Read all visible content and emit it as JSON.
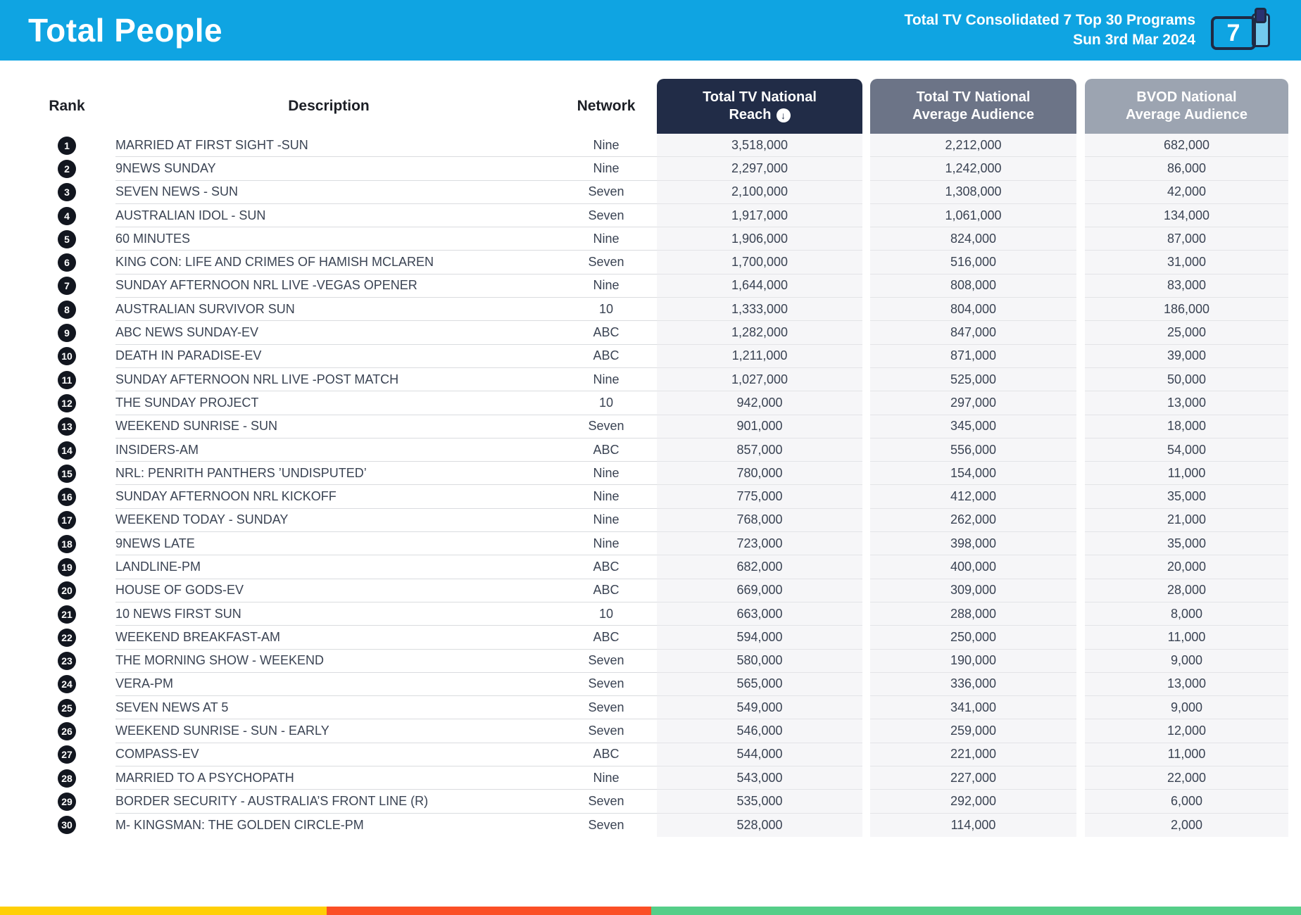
{
  "header": {
    "title": "Total People",
    "subtitle_line1": "Total TV Consolidated 7 Top 30 Programs",
    "subtitle_line2": "Sun 3rd Mar 2024",
    "icon_number": "7",
    "banner_color": "#0FA4E2"
  },
  "table": {
    "columns": {
      "rank": "Rank",
      "description": "Description",
      "network": "Network",
      "reach_line1": "Total TV National",
      "reach_line2": "Reach",
      "reach_sort_icon": "↓",
      "avg_line1": "Total TV National",
      "avg_line2": "Average Audience",
      "bvod_line1": "BVOD National",
      "bvod_line2": "Average Audience"
    },
    "header_colors": {
      "reach": "#212C47",
      "avg": "#6C7487",
      "bvod": "#9CA4B1"
    },
    "rows": [
      {
        "rank": "1",
        "description": "MARRIED AT FIRST SIGHT -SUN",
        "network": "Nine",
        "reach": "3,518,000",
        "avg": "2,212,000",
        "bvod": "682,000"
      },
      {
        "rank": "2",
        "description": "9NEWS SUNDAY",
        "network": "Nine",
        "reach": "2,297,000",
        "avg": "1,242,000",
        "bvod": "86,000"
      },
      {
        "rank": "3",
        "description": "SEVEN NEWS - SUN",
        "network": "Seven",
        "reach": "2,100,000",
        "avg": "1,308,000",
        "bvod": "42,000"
      },
      {
        "rank": "4",
        "description": "AUSTRALIAN IDOL - SUN",
        "network": "Seven",
        "reach": "1,917,000",
        "avg": "1,061,000",
        "bvod": "134,000"
      },
      {
        "rank": "5",
        "description": "60 MINUTES",
        "network": "Nine",
        "reach": "1,906,000",
        "avg": "824,000",
        "bvod": "87,000"
      },
      {
        "rank": "6",
        "description": "KING CON: LIFE AND CRIMES OF HAMISH MCLAREN",
        "network": "Seven",
        "reach": "1,700,000",
        "avg": "516,000",
        "bvod": "31,000"
      },
      {
        "rank": "7",
        "description": "SUNDAY AFTERNOON NRL LIVE -VEGAS OPENER",
        "network": "Nine",
        "reach": "1,644,000",
        "avg": "808,000",
        "bvod": "83,000"
      },
      {
        "rank": "8",
        "description": "AUSTRALIAN SURVIVOR SUN",
        "network": "10",
        "reach": "1,333,000",
        "avg": "804,000",
        "bvod": "186,000"
      },
      {
        "rank": "9",
        "description": "ABC NEWS SUNDAY-EV",
        "network": "ABC",
        "reach": "1,282,000",
        "avg": "847,000",
        "bvod": "25,000"
      },
      {
        "rank": "10",
        "description": "DEATH IN PARADISE-EV",
        "network": "ABC",
        "reach": "1,211,000",
        "avg": "871,000",
        "bvod": "39,000"
      },
      {
        "rank": "11",
        "description": "SUNDAY AFTERNOON NRL LIVE -POST MATCH",
        "network": "Nine",
        "reach": "1,027,000",
        "avg": "525,000",
        "bvod": "50,000"
      },
      {
        "rank": "12",
        "description": "THE SUNDAY PROJECT",
        "network": "10",
        "reach": "942,000",
        "avg": "297,000",
        "bvod": "13,000"
      },
      {
        "rank": "13",
        "description": "WEEKEND SUNRISE - SUN",
        "network": "Seven",
        "reach": "901,000",
        "avg": "345,000",
        "bvod": "18,000"
      },
      {
        "rank": "14",
        "description": "INSIDERS-AM",
        "network": "ABC",
        "reach": "857,000",
        "avg": "556,000",
        "bvod": "54,000"
      },
      {
        "rank": "15",
        "description": "NRL: PENRITH PANTHERS ’UNDISPUTED’",
        "network": "Nine",
        "reach": "780,000",
        "avg": "154,000",
        "bvod": "11,000"
      },
      {
        "rank": "16",
        "description": "SUNDAY AFTERNOON NRL KICKOFF",
        "network": "Nine",
        "reach": "775,000",
        "avg": "412,000",
        "bvod": "35,000"
      },
      {
        "rank": "17",
        "description": "WEEKEND TODAY - SUNDAY",
        "network": "Nine",
        "reach": "768,000",
        "avg": "262,000",
        "bvod": "21,000"
      },
      {
        "rank": "18",
        "description": "9NEWS LATE",
        "network": "Nine",
        "reach": "723,000",
        "avg": "398,000",
        "bvod": "35,000"
      },
      {
        "rank": "19",
        "description": "LANDLINE-PM",
        "network": "ABC",
        "reach": "682,000",
        "avg": "400,000",
        "bvod": "20,000"
      },
      {
        "rank": "20",
        "description": "HOUSE OF GODS-EV",
        "network": "ABC",
        "reach": "669,000",
        "avg": "309,000",
        "bvod": "28,000"
      },
      {
        "rank": "21",
        "description": "10 NEWS FIRST SUN",
        "network": "10",
        "reach": "663,000",
        "avg": "288,000",
        "bvod": "8,000"
      },
      {
        "rank": "22",
        "description": "WEEKEND BREAKFAST-AM",
        "network": "ABC",
        "reach": "594,000",
        "avg": "250,000",
        "bvod": "11,000"
      },
      {
        "rank": "23",
        "description": "THE MORNING SHOW - WEEKEND",
        "network": "Seven",
        "reach": "580,000",
        "avg": "190,000",
        "bvod": "9,000"
      },
      {
        "rank": "24",
        "description": "VERA-PM",
        "network": "Seven",
        "reach": "565,000",
        "avg": "336,000",
        "bvod": "13,000"
      },
      {
        "rank": "25",
        "description": "SEVEN NEWS AT 5",
        "network": "Seven",
        "reach": "549,000",
        "avg": "341,000",
        "bvod": "9,000"
      },
      {
        "rank": "26",
        "description": "WEEKEND SUNRISE - SUN - EARLY",
        "network": "Seven",
        "reach": "546,000",
        "avg": "259,000",
        "bvod": "12,000"
      },
      {
        "rank": "27",
        "description": "COMPASS-EV",
        "network": "ABC",
        "reach": "544,000",
        "avg": "221,000",
        "bvod": "11,000"
      },
      {
        "rank": "28",
        "description": "MARRIED TO A PSYCHOPATH",
        "network": "Nine",
        "reach": "543,000",
        "avg": "227,000",
        "bvod": "22,000"
      },
      {
        "rank": "29",
        "description": "BORDER SECURITY - AUSTRALIA’S FRONT LINE (R)",
        "network": "Seven",
        "reach": "535,000",
        "avg": "292,000",
        "bvod": "6,000"
      },
      {
        "rank": "30",
        "description": "M- KINGSMAN: THE GOLDEN CIRCLE-PM",
        "network": "Seven",
        "reach": "528,000",
        "avg": "114,000",
        "bvod": "2,000"
      }
    ]
  },
  "footer": {
    "segment_colors": [
      "#FFCF06",
      "#FB4F26",
      "#55CE88"
    ]
  }
}
